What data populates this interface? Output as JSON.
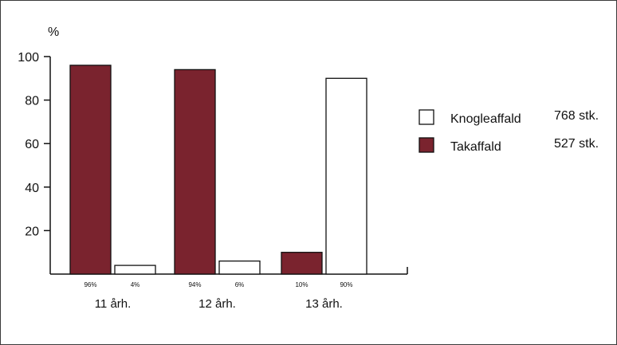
{
  "chart_data": {
    "type": "bar",
    "ylabel": "%",
    "ylim": [
      0,
      100
    ],
    "yticks": [
      20,
      40,
      60,
      80,
      100
    ],
    "grid": false,
    "legend_position": "right",
    "categories": [
      "11 årh.",
      "12 årh.",
      "13 årh."
    ],
    "series": [
      {
        "name": "Takaffald",
        "count": "527 stk.",
        "color": "#7a232e",
        "values": [
          96,
          94,
          10
        ],
        "labels": [
          "96%",
          "94%",
          "10%"
        ]
      },
      {
        "name": "Knogleaffald",
        "count": "768 stk.",
        "color": "#ffffff",
        "values": [
          4,
          6,
          90
        ],
        "labels": [
          "4%",
          "6%",
          "90%"
        ]
      }
    ],
    "legend_order": [
      1,
      0
    ]
  }
}
